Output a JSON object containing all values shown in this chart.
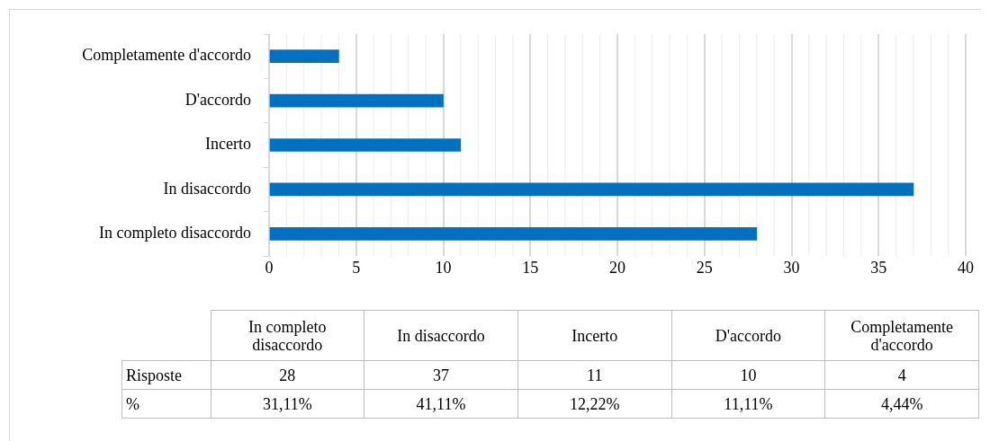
{
  "chart_data": {
    "type": "bar",
    "orientation": "horizontal",
    "categories": [
      "Completamente d'accordo",
      "D'accordo",
      "Incerto",
      "In disaccordo",
      "In completo disaccordo"
    ],
    "values": [
      4,
      10,
      11,
      37,
      28
    ],
    "color": "#0070c0",
    "xlim": [
      0,
      40
    ],
    "xticks": [
      0,
      5,
      10,
      15,
      20,
      25,
      30,
      35,
      40
    ],
    "grid": "x",
    "annotations": [
      "Risposte",
      "28",
      "37",
      "11",
      "10",
      "4",
      "%",
      "31,11%",
      "41,11%",
      "12,22%",
      "11,11%",
      "4,44%"
    ]
  }
}
